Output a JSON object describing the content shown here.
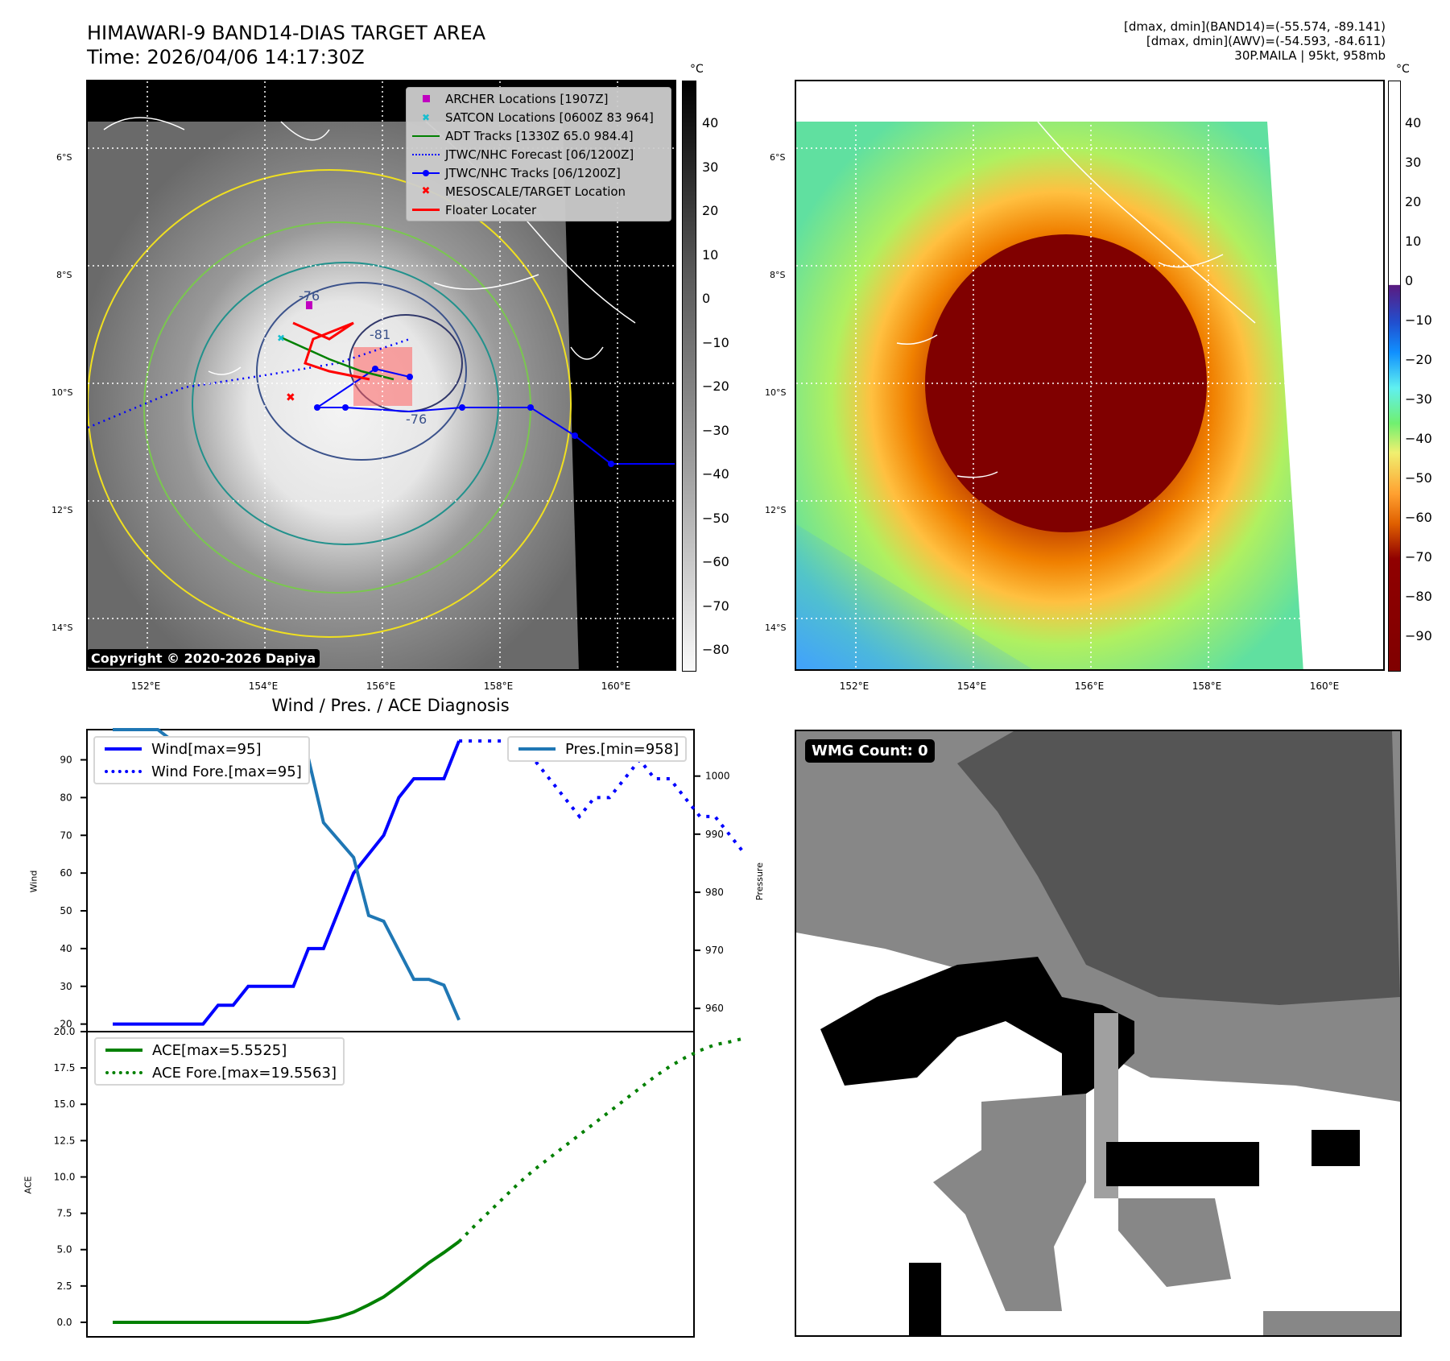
{
  "header": {
    "title_line1": "HIMAWARI-9 BAND14-DIAS TARGET AREA",
    "title_line2": "Time: 2026/04/06 14:17:30Z",
    "info_line1": "[dmax, dmin](BAND14)=(-55.574, -89.141)",
    "info_line2": "[dmax, dmin](AWV)=(-54.593, -84.611)",
    "info_line3": "30P.MAILA | 95kt, 958mb"
  },
  "map_left": {
    "lat_ticks": [
      "6°S",
      "8°S",
      "10°S",
      "12°S",
      "14°S"
    ],
    "lon_ticks": [
      "152°E",
      "154°E",
      "156°E",
      "158°E",
      "160°E"
    ],
    "copyright": "Copyright © 2020-2026 Dapiya",
    "contour_labels": [
      "-76",
      "-81",
      "-76"
    ],
    "legend": [
      {
        "label": "ARCHER Locations [1907Z]",
        "icon": "square-marker",
        "color": "#c000c0"
      },
      {
        "label": "SATCON Locations [0600Z 83 964]",
        "icon": "x-marker",
        "color": "#17becf"
      },
      {
        "label": "ADT Tracks [1330Z 65.0 984.4]",
        "icon": "solid-line",
        "color": "#008000"
      },
      {
        "label": "JTWC/NHC Forecast [06/1200Z]",
        "icon": "dotted-line",
        "color": "#0000ff"
      },
      {
        "label": "JTWC/NHC Tracks [06/1200Z]",
        "icon": "line-dot",
        "color": "#0000ff"
      },
      {
        "label": "MESOSCALE/TARGET Location",
        "icon": "x-marker",
        "color": "#ff0000"
      },
      {
        "label": "Floater Locater",
        "icon": "solid-line",
        "color": "#ff0000"
      }
    ],
    "colorbar": {
      "unit": "°C",
      "ticks": [
        "40",
        "30",
        "20",
        "10",
        "0",
        "−10",
        "−20",
        "−30",
        "−40",
        "−50",
        "−60",
        "−70",
        "−80"
      ]
    }
  },
  "map_right": {
    "lat_ticks": [
      "6°S",
      "8°S",
      "10°S",
      "12°S",
      "14°S"
    ],
    "lon_ticks": [
      "152°E",
      "154°E",
      "156°E",
      "158°E",
      "160°E"
    ],
    "colorbar": {
      "unit": "°C",
      "ticks": [
        "40",
        "30",
        "20",
        "10",
        "0",
        "−10",
        "−20",
        "−30",
        "−40",
        "−50",
        "−60",
        "−70",
        "−80",
        "−90"
      ]
    }
  },
  "wmg": {
    "badge": "WMG Count: 0"
  },
  "chart_data": [
    {
      "type": "line",
      "title": "Wind / Pres. / ACE Diagnosis",
      "ylabel": "Wind",
      "ylim": [
        18,
        98
      ],
      "yticks": [
        "20",
        "30",
        "40",
        "50",
        "60",
        "70",
        "80",
        "90"
      ],
      "y2label": "Pressure",
      "y2lim": [
        956,
        1008
      ],
      "y2ticks": [
        "960",
        "970",
        "980",
        "990",
        "1000"
      ],
      "series": [
        {
          "name": "Wind[max=95]",
          "axis": "left",
          "style": "solid",
          "color": "#0000ff",
          "values": [
            20,
            20,
            20,
            20,
            20,
            20,
            20,
            25,
            25,
            30,
            30,
            30,
            30,
            40,
            40,
            50,
            60,
            65,
            70,
            80,
            85,
            85,
            85,
            95
          ]
        },
        {
          "name": "Wind Fore.[max=95]",
          "axis": "left",
          "style": "dotted",
          "color": "#0000ff",
          "start_index": 23,
          "values": [
            95,
            95,
            95,
            95,
            95,
            90,
            85,
            80,
            75,
            80,
            80,
            85,
            90,
            85,
            85,
            80,
            75,
            75,
            70,
            65
          ]
        },
        {
          "name": "Pres.[min=958]",
          "axis": "right",
          "style": "solid",
          "color": "#1f77b4",
          "values": [
            1008,
            1008,
            1008,
            1008,
            1006,
            1006,
            1006,
            1006,
            1004,
            1004,
            1004,
            1004,
            1003,
            1003,
            992,
            989,
            986,
            976,
            975,
            970,
            965,
            965,
            964,
            958
          ]
        }
      ]
    },
    {
      "type": "line",
      "ylabel": "ACE",
      "ylim": [
        -1,
        20
      ],
      "yticks": [
        "0.0",
        "2.5",
        "5.0",
        "7.5",
        "10.0",
        "12.5",
        "15.0",
        "17.5",
        "20.0"
      ],
      "series": [
        {
          "name": "ACE[max=5.5525]",
          "style": "solid",
          "color": "#008000",
          "values": [
            0,
            0,
            0,
            0,
            0,
            0,
            0,
            0,
            0,
            0,
            0,
            0,
            0,
            0,
            0.15,
            0.35,
            0.7,
            1.2,
            1.75,
            2.5,
            3.3,
            4.1,
            4.8,
            5.5525
          ]
        },
        {
          "name": "ACE Fore.[max=19.5563]",
          "style": "dotted",
          "color": "#008000",
          "start_index": 23,
          "values": [
            5.5525,
            6.6,
            7.6,
            8.6,
            9.6,
            10.5,
            11.3,
            12.1,
            12.9,
            13.7,
            14.5,
            15.3,
            16.1,
            16.9,
            17.6,
            18.2,
            18.7,
            19.1,
            19.3,
            19.5563
          ]
        }
      ]
    }
  ]
}
